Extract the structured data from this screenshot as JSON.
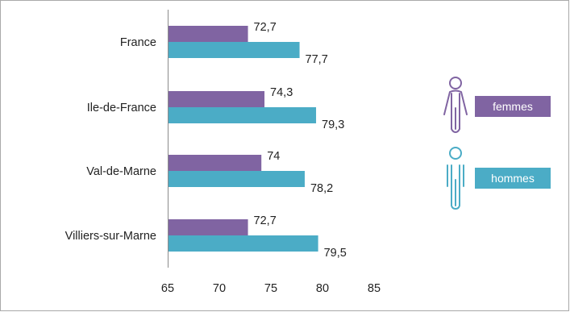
{
  "chart_data": {
    "type": "bar",
    "orientation": "horizontal",
    "categories": [
      "France",
      "Ile-de-France",
      "Val-de-Marne",
      "Villiers-sur-Marne"
    ],
    "series": [
      {
        "name": "femmes",
        "values": [
          72.7,
          74.3,
          74,
          72.7
        ],
        "labels": [
          "72,7",
          "74,3",
          "74",
          "72,7"
        ]
      },
      {
        "name": "hommes",
        "values": [
          77.7,
          79.3,
          78.2,
          79.5
        ],
        "labels": [
          "77,7",
          "79,3",
          "78,2",
          "79,5"
        ]
      }
    ],
    "xlim": [
      65,
      85
    ],
    "xticks": [
      65,
      70,
      75,
      80,
      85
    ],
    "grid": false,
    "legend_position": "right"
  },
  "colors": {
    "femmes": "#8064a2",
    "hommes": "#4bacc6",
    "axis": "#8c8c8c"
  },
  "legend": {
    "femmes_label": "femmes",
    "hommes_label": "hommes",
    "femmes_icon": "woman-icon",
    "hommes_icon": "man-icon"
  }
}
